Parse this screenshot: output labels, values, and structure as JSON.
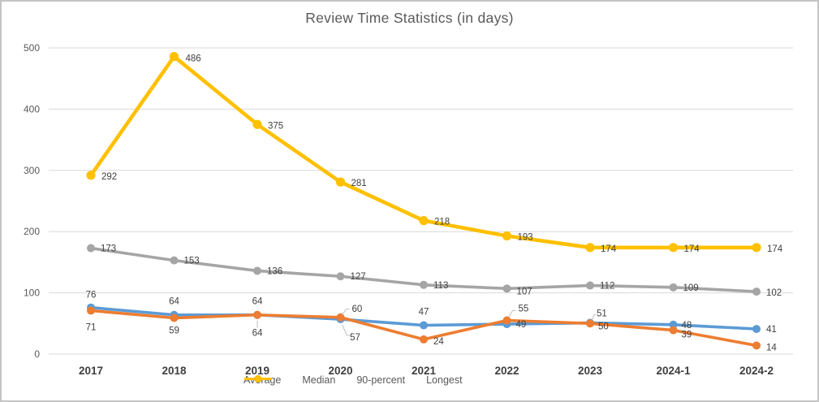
{
  "chart_data": {
    "type": "line",
    "title": "Review Time Statistics (in days)",
    "categories": [
      "2017",
      "2018",
      "2019",
      "2020",
      "2021",
      "2022",
      "2023",
      "2024-1",
      "2024-2"
    ],
    "series": [
      {
        "name": "Average",
        "color": "#5B9BD5",
        "values": [
          76,
          64,
          64,
          57,
          47,
          49,
          51,
          48,
          41
        ]
      },
      {
        "name": "Median",
        "color": "#ED7D31",
        "values": [
          71,
          59,
          64,
          60,
          24,
          55,
          50,
          39,
          14
        ]
      },
      {
        "name": "90-percent",
        "color": "#A5A5A5",
        "values": [
          173,
          153,
          136,
          127,
          113,
          107,
          112,
          109,
          102
        ]
      },
      {
        "name": "Longest",
        "color": "#FFC000",
        "values": [
          292,
          486,
          375,
          281,
          218,
          193,
          174,
          174,
          174
        ]
      }
    ],
    "ylim": [
      0,
      500
    ],
    "yticks": [
      0,
      100,
      200,
      300,
      400,
      500
    ],
    "grid": true,
    "data_labels": true,
    "legend_position": "bottom",
    "legend": [
      "Average",
      "Median",
      "90-percent",
      "Longest"
    ]
  },
  "colors": {
    "gridline": "#d9d9d9",
    "axis_text": "#595959",
    "category_text": "#3f3f3f",
    "data_label_text": "#404040",
    "title_text": "#595959",
    "frame_border": "#c4c4c4"
  }
}
